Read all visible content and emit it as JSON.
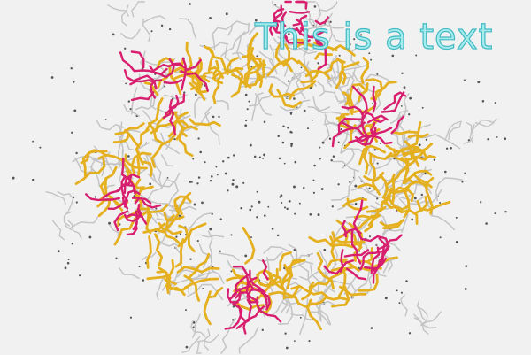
{
  "overlay": {
    "text": "This is a text",
    "fill_color": "#a6ecec",
    "stroke_color": "#43b9c4"
  },
  "colors": {
    "background": "#f1f1f1",
    "gold": "#e5b020",
    "magenta": "#d81e6e",
    "gray": "#c4c4c4",
    "dot": "#555555"
  }
}
